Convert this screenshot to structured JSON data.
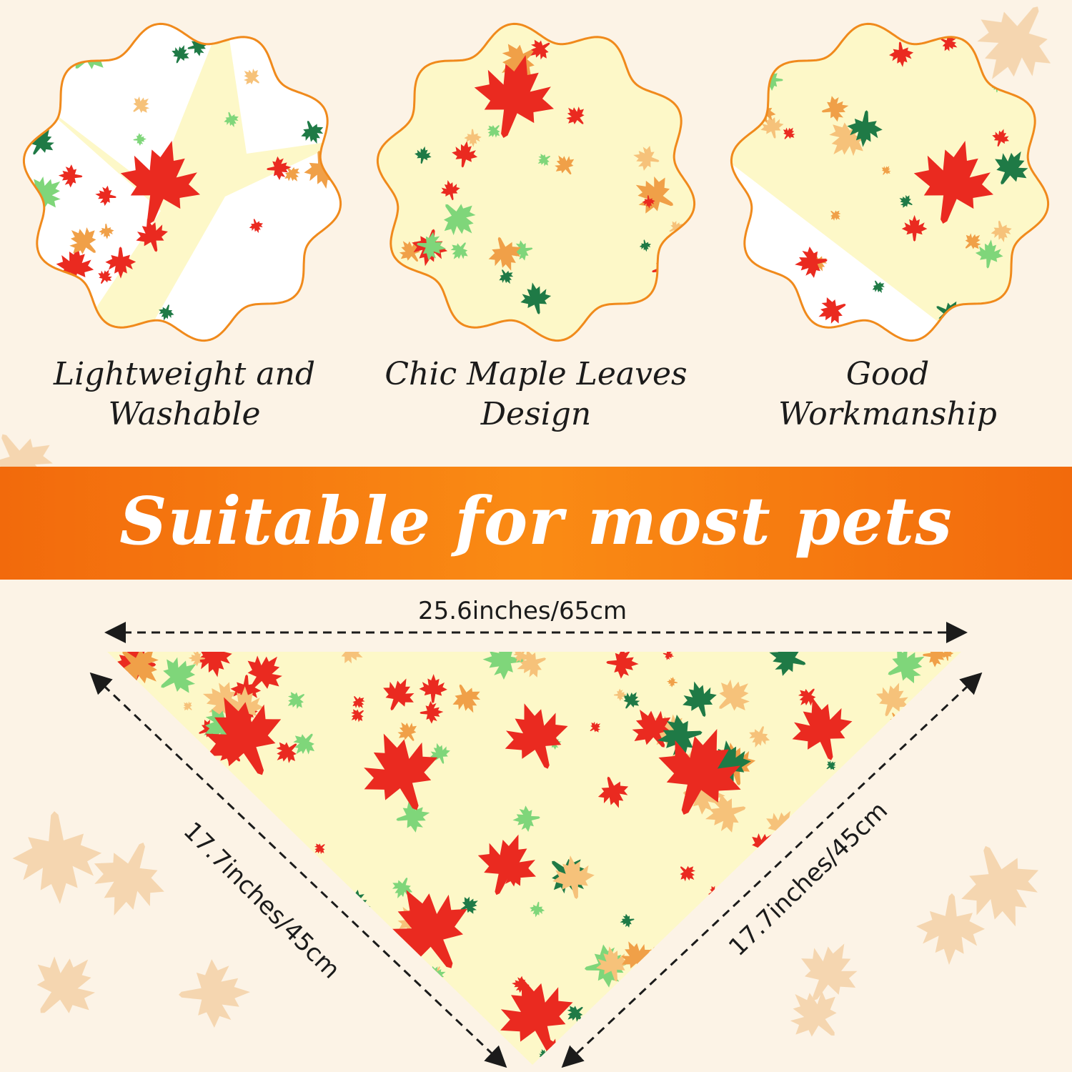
{
  "features": [
    {
      "line1": "Lightweight and",
      "line2": "Washable"
    },
    {
      "line1": "Chic Maple Leaves",
      "line2": "Design"
    },
    {
      "line1": "Good",
      "line2": "Workmanship"
    }
  ],
  "banner": {
    "text": "Suitable for most pets"
  },
  "dimensions": {
    "top": "25.6inches/65cm",
    "left": "17.7inches/45cm",
    "right": "17.7inches/45cm"
  },
  "colors": {
    "background": "#fcf3e6",
    "banner": "#f77a0e",
    "fabric": "#fdf8c8",
    "leaf_red": "#ea2a20",
    "leaf_green": "#1f7a46",
    "leaf_orange": "#f0a048",
    "outline": "#f08a1c"
  }
}
